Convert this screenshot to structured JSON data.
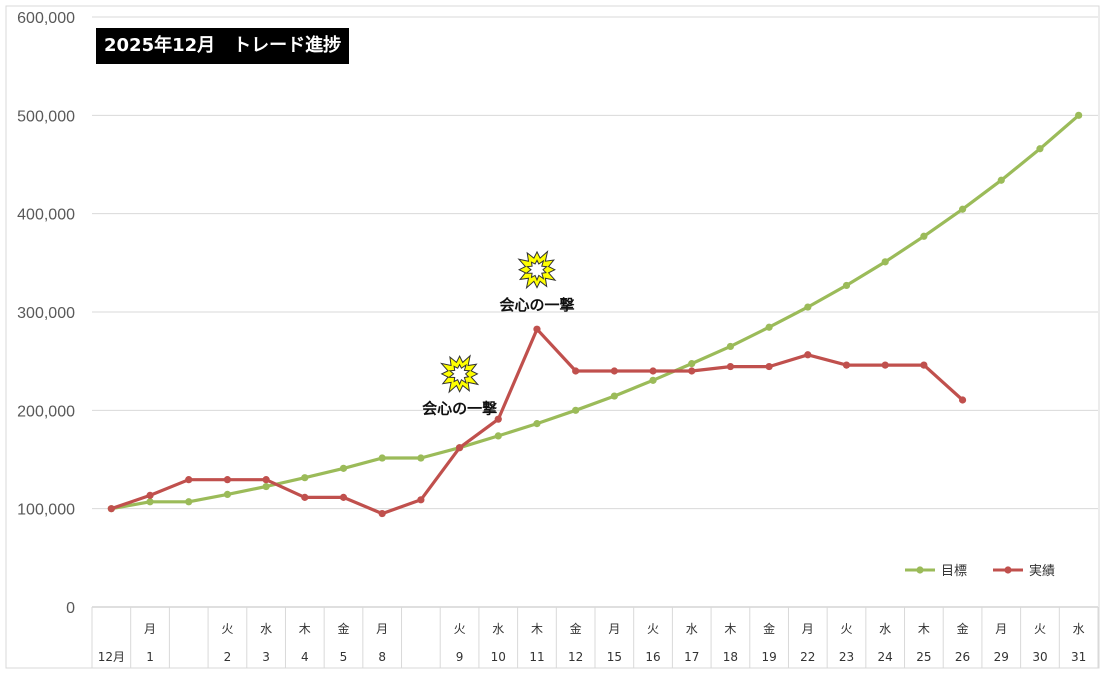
{
  "chart_data": {
    "type": "line",
    "title": "2025年12月　トレード進捗",
    "ylim": [
      0,
      600000
    ],
    "y_ticks": [
      "0",
      "100,000",
      "200,000",
      "300,000",
      "400,000",
      "500,000",
      "600,000"
    ],
    "grid": true,
    "legend_position": "bottom-right",
    "month_label": "12月",
    "categories": [
      {
        "day": "",
        "weekday": ""
      },
      {
        "day": "1",
        "weekday": "月"
      },
      {
        "day": "",
        "weekday": ""
      },
      {
        "day": "2",
        "weekday": "火"
      },
      {
        "day": "3",
        "weekday": "水"
      },
      {
        "day": "4",
        "weekday": "木"
      },
      {
        "day": "5",
        "weekday": "金"
      },
      {
        "day": "8",
        "weekday": "月"
      },
      {
        "day": "",
        "weekday": ""
      },
      {
        "day": "9",
        "weekday": "火"
      },
      {
        "day": "10",
        "weekday": "水"
      },
      {
        "day": "11",
        "weekday": "木"
      },
      {
        "day": "12",
        "weekday": "金"
      },
      {
        "day": "15",
        "weekday": "月"
      },
      {
        "day": "16",
        "weekday": "火"
      },
      {
        "day": "17",
        "weekday": "水"
      },
      {
        "day": "18",
        "weekday": "木"
      },
      {
        "day": "19",
        "weekday": "金"
      },
      {
        "day": "22",
        "weekday": "月"
      },
      {
        "day": "23",
        "weekday": "火"
      },
      {
        "day": "24",
        "weekday": "水"
      },
      {
        "day": "25",
        "weekday": "木"
      },
      {
        "day": "26",
        "weekday": "金"
      },
      {
        "day": "29",
        "weekday": "月"
      },
      {
        "day": "30",
        "weekday": "火"
      },
      {
        "day": "31",
        "weekday": "水"
      }
    ],
    "series": [
      {
        "name": "目標",
        "color": "#9BBB59",
        "values": [
          100000,
          107000,
          107000,
          114500,
          122500,
          131500,
          141000,
          151500,
          151500,
          162000,
          174000,
          186500,
          200000,
          214500,
          230500,
          247500,
          265000,
          284500,
          305000,
          327000,
          351000,
          377000,
          404500,
          434000,
          466000,
          500000
        ]
      },
      {
        "name": "実績",
        "color": "#C0504D",
        "values": [
          100000,
          113500,
          129500,
          129500,
          129500,
          111500,
          111500,
          95000,
          109000,
          162000,
          191000,
          282500,
          240000,
          240000,
          240000,
          240000,
          244500,
          244500,
          256500,
          246000,
          246000,
          246000,
          210500,
          null,
          null,
          null
        ]
      }
    ],
    "annotations": [
      {
        "text": "会心の一撃",
        "x_index": 11,
        "y_value": 307000,
        "burst_y_value": 343000,
        "burst_color": "#FFFF00"
      },
      {
        "text": "会心の一撃",
        "x_index": 9,
        "y_value": 202000,
        "burst_y_value": 237000,
        "burst_color": "#FFFF00"
      }
    ]
  }
}
